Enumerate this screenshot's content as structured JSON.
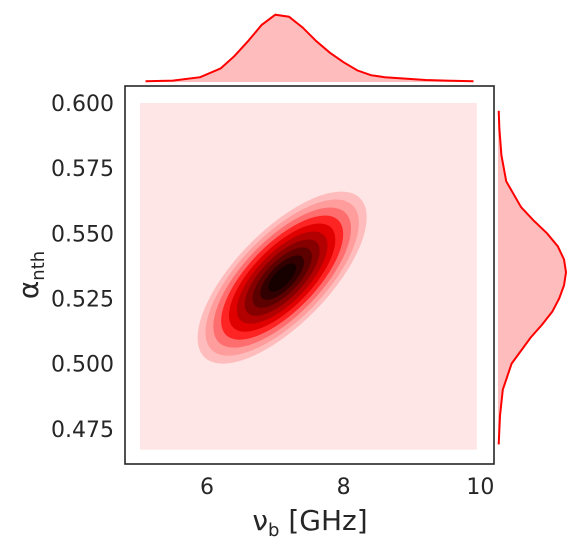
{
  "chart_data": {
    "type": "kde_joint",
    "xlabel": "ν_b [GHz]",
    "ylabel": "α_nth",
    "xlim": [
      4.8,
      10.2
    ],
    "ylim": [
      0.4615,
      0.6065
    ],
    "x_ticks": [
      6,
      8,
      10
    ],
    "x_tick_labels": [
      "6",
      "8",
      "10"
    ],
    "y_ticks": [
      0.475,
      0.5,
      0.525,
      0.55,
      0.575,
      0.6
    ],
    "y_tick_labels": [
      "0.475",
      "0.500",
      "0.525",
      "0.550",
      "0.575",
      "0.600"
    ],
    "grid": false,
    "color": "#ff0000",
    "fill_color": "#ffbcbc",
    "background_band_color": "#ffe6e6",
    "kde_support_x": [
      5.02,
      9.95
    ],
    "kde_support_y": [
      0.467,
      0.6
    ],
    "peak": {
      "x": 7.1,
      "y": 0.533
    },
    "spread": {
      "x": 0.45,
      "y": 0.012
    },
    "correlation": 0.7,
    "contour_levels": [
      {
        "level": 1,
        "color": "#ffbcbc"
      },
      {
        "level": 2,
        "color": "#ff9c9c"
      },
      {
        "level": 3,
        "color": "#ff6e6e"
      },
      {
        "level": 4,
        "color": "#ff2424"
      },
      {
        "level": 5,
        "color": "#e00000"
      },
      {
        "level": 6,
        "color": "#b30000"
      },
      {
        "level": 7,
        "color": "#870000"
      },
      {
        "level": 8,
        "color": "#5c0000"
      },
      {
        "level": 9,
        "color": "#320000"
      },
      {
        "level": 10,
        "color": "#170000"
      }
    ],
    "marginal_x": {
      "x": [
        5.1,
        5.5,
        5.9,
        6.2,
        6.4,
        6.6,
        6.8,
        7.0,
        7.2,
        7.4,
        7.6,
        7.8,
        8.0,
        8.2,
        8.4,
        8.6,
        8.9,
        9.2,
        9.5,
        9.9
      ],
      "density": [
        0.01,
        0.02,
        0.07,
        0.2,
        0.38,
        0.6,
        0.84,
        0.99,
        0.96,
        0.8,
        0.6,
        0.43,
        0.29,
        0.17,
        0.1,
        0.07,
        0.05,
        0.03,
        0.02,
        0.01
      ]
    },
    "marginal_y": {
      "y": [
        0.469,
        0.48,
        0.49,
        0.5,
        0.51,
        0.515,
        0.52,
        0.525,
        0.53,
        0.535,
        0.54,
        0.545,
        0.55,
        0.555,
        0.56,
        0.57,
        0.58,
        0.59,
        0.597
      ],
      "density": [
        0.01,
        0.03,
        0.07,
        0.2,
        0.48,
        0.65,
        0.8,
        0.9,
        0.97,
        1.0,
        0.97,
        0.88,
        0.72,
        0.52,
        0.34,
        0.12,
        0.05,
        0.02,
        0.01
      ]
    }
  }
}
